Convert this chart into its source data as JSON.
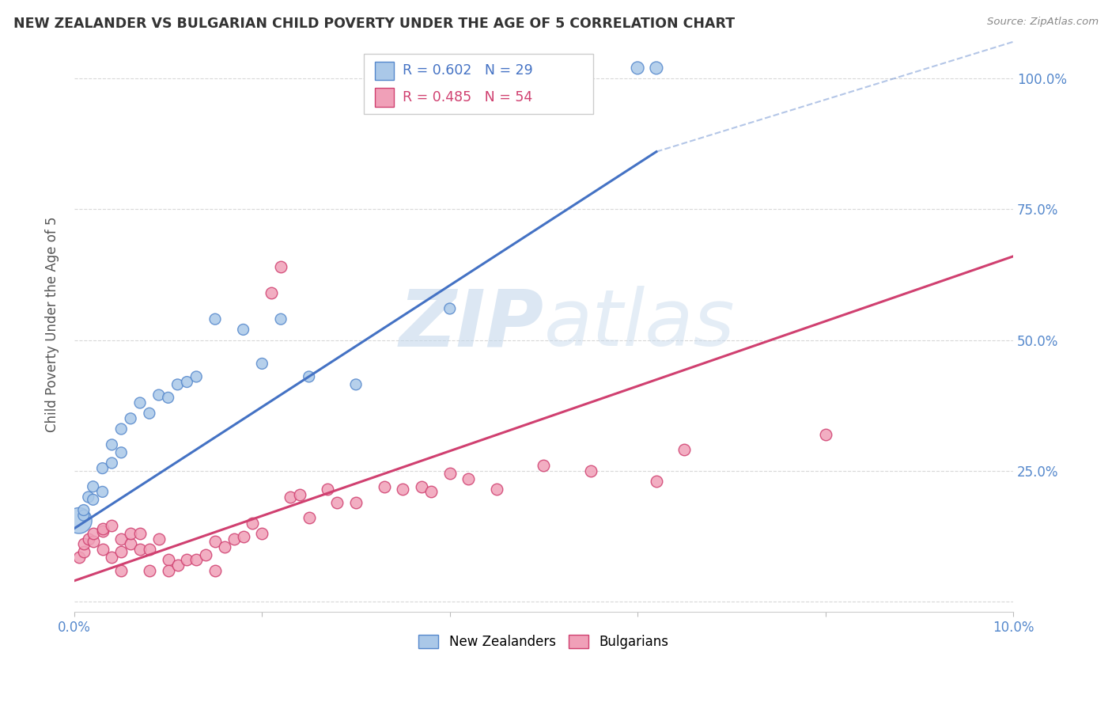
{
  "title": "NEW ZEALANDER VS BULGARIAN CHILD POVERTY UNDER THE AGE OF 5 CORRELATION CHART",
  "source": "Source: ZipAtlas.com",
  "ylabel": "Child Poverty Under the Age of 5",
  "xlim": [
    0.0,
    0.1
  ],
  "ylim": [
    -0.02,
    1.08
  ],
  "legend_nz": "New Zealanders",
  "legend_bg": "Bulgarians",
  "nz_color": "#aac8e8",
  "bg_color": "#f0a0b8",
  "nz_edge_color": "#5588cc",
  "bg_edge_color": "#d04070",
  "nz_line_color": "#4472c4",
  "bg_line_color": "#d04070",
  "nz_R": "0.602",
  "nz_N": "29",
  "bg_R": "0.485",
  "bg_N": "54",
  "title_color": "#333333",
  "source_color": "#888888",
  "axis_tick_color": "#5588cc",
  "ylabel_color": "#555555",
  "grid_color": "#d8d8d8",
  "watermark_color": "#c5d8ec",
  "nz_x": [
    0.0005,
    0.001,
    0.001,
    0.0015,
    0.002,
    0.002,
    0.003,
    0.003,
    0.004,
    0.004,
    0.005,
    0.005,
    0.006,
    0.007,
    0.008,
    0.009,
    0.01,
    0.011,
    0.012,
    0.013,
    0.015,
    0.018,
    0.02,
    0.022,
    0.025,
    0.03,
    0.04,
    0.06,
    0.062
  ],
  "nz_y": [
    0.155,
    0.165,
    0.175,
    0.2,
    0.195,
    0.22,
    0.21,
    0.255,
    0.265,
    0.3,
    0.285,
    0.33,
    0.35,
    0.38,
    0.36,
    0.395,
    0.39,
    0.415,
    0.42,
    0.43,
    0.54,
    0.52,
    0.455,
    0.54,
    0.43,
    0.415,
    0.56,
    1.02,
    1.02
  ],
  "nz_sizes": [
    550,
    100,
    100,
    100,
    100,
    100,
    100,
    100,
    100,
    100,
    100,
    100,
    100,
    100,
    100,
    100,
    100,
    100,
    100,
    100,
    100,
    100,
    100,
    100,
    100,
    100,
    100,
    130,
    130
  ],
  "bg_x": [
    0.0005,
    0.001,
    0.001,
    0.0015,
    0.002,
    0.002,
    0.003,
    0.003,
    0.003,
    0.004,
    0.004,
    0.005,
    0.005,
    0.005,
    0.006,
    0.006,
    0.007,
    0.007,
    0.008,
    0.008,
    0.009,
    0.01,
    0.01,
    0.011,
    0.012,
    0.013,
    0.014,
    0.015,
    0.015,
    0.016,
    0.017,
    0.018,
    0.019,
    0.02,
    0.021,
    0.022,
    0.023,
    0.024,
    0.025,
    0.027,
    0.028,
    0.03,
    0.033,
    0.035,
    0.037,
    0.038,
    0.04,
    0.042,
    0.045,
    0.05,
    0.055,
    0.062,
    0.065,
    0.08
  ],
  "bg_y": [
    0.085,
    0.095,
    0.11,
    0.12,
    0.115,
    0.13,
    0.135,
    0.14,
    0.1,
    0.145,
    0.085,
    0.095,
    0.12,
    0.06,
    0.11,
    0.13,
    0.1,
    0.13,
    0.1,
    0.06,
    0.12,
    0.08,
    0.06,
    0.07,
    0.08,
    0.08,
    0.09,
    0.115,
    0.06,
    0.105,
    0.12,
    0.125,
    0.15,
    0.13,
    0.59,
    0.64,
    0.2,
    0.205,
    0.16,
    0.215,
    0.19,
    0.19,
    0.22,
    0.215,
    0.22,
    0.21,
    0.245,
    0.235,
    0.215,
    0.26,
    0.25,
    0.23,
    0.29,
    0.32
  ],
  "nz_line_x0": 0.0,
  "nz_line_y0": 0.14,
  "nz_line_x1": 0.062,
  "nz_line_y1": 0.86,
  "nz_line_dash_x0": 0.062,
  "nz_line_dash_y0": 0.86,
  "nz_line_dash_x1": 0.1,
  "nz_line_dash_y1": 1.07,
  "bg_line_x0": 0.0,
  "bg_line_y0": 0.04,
  "bg_line_x1": 0.1,
  "bg_line_y1": 0.66
}
